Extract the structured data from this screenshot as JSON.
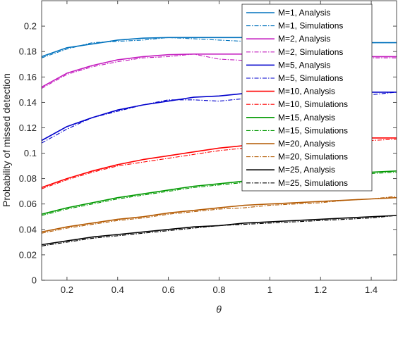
{
  "chart_data": {
    "type": "line",
    "xlabel": "θ",
    "ylabel": "Probability of missed detection",
    "xlim": [
      0.1,
      1.5
    ],
    "ylim": [
      0,
      0.22
    ],
    "xticks": [
      "0.2",
      "0.4",
      "0.6",
      "0.8",
      "1",
      "1.2",
      "1.4"
    ],
    "yticks": [
      "0",
      "0.02",
      "0.04",
      "0.06",
      "0.08",
      "0.1",
      "0.12",
      "0.14",
      "0.16",
      "0.18",
      "0.2"
    ],
    "grid": false,
    "legend_position": "top-right",
    "x": [
      0.1,
      0.2,
      0.3,
      0.4,
      0.5,
      0.6,
      0.7,
      0.8,
      0.9,
      1.0,
      1.1,
      1.2,
      1.3,
      1.4,
      1.5
    ],
    "series": [
      {
        "name": "M=1, Analysis",
        "color": "#0072BD",
        "dash": "solid",
        "values": [
          0.176,
          0.183,
          0.186,
          0.189,
          0.1905,
          0.191,
          0.191,
          0.191,
          0.191,
          0.1905,
          0.19,
          0.189,
          0.188,
          0.187,
          0.187
        ]
      },
      {
        "name": "M=1, Simulations",
        "color": "#0072BD",
        "dash": "dashdot",
        "values": [
          0.175,
          0.182,
          0.187,
          0.188,
          0.189,
          0.191,
          0.19,
          0.189,
          0.188,
          0.187,
          0.186,
          0.187,
          0.186,
          0.187,
          0.187
        ]
      },
      {
        "name": "M=2, Analysis",
        "color": "#C41DBF",
        "dash": "solid",
        "values": [
          0.152,
          0.163,
          0.169,
          0.1735,
          0.176,
          0.1775,
          0.178,
          0.178,
          0.178,
          0.178,
          0.178,
          0.177,
          0.177,
          0.176,
          0.176
        ]
      },
      {
        "name": "M=2, Simulations",
        "color": "#C41DBF",
        "dash": "dashdot",
        "values": [
          0.151,
          0.162,
          0.168,
          0.172,
          0.175,
          0.176,
          0.178,
          0.174,
          0.173,
          0.175,
          0.172,
          0.174,
          0.176,
          0.175,
          0.175
        ]
      },
      {
        "name": "M=5, Analysis",
        "color": "#0000CC",
        "dash": "solid",
        "values": [
          0.11,
          0.121,
          0.128,
          0.134,
          0.138,
          0.141,
          0.144,
          0.145,
          0.147,
          0.147,
          0.148,
          0.148,
          0.148,
          0.148,
          0.148
        ]
      },
      {
        "name": "M=5, Simulations",
        "color": "#0000CC",
        "dash": "dashdot",
        "values": [
          0.108,
          0.119,
          0.128,
          0.133,
          0.138,
          0.142,
          0.142,
          0.141,
          0.143,
          0.141,
          0.14,
          0.142,
          0.145,
          0.146,
          0.148
        ]
      },
      {
        "name": "M=10, Analysis",
        "color": "#FF0000",
        "dash": "solid",
        "values": [
          0.073,
          0.08,
          0.086,
          0.091,
          0.095,
          0.098,
          0.101,
          0.104,
          0.106,
          0.108,
          0.109,
          0.11,
          0.111,
          0.112,
          0.112
        ]
      },
      {
        "name": "M=10, Simulations",
        "color": "#FF0000",
        "dash": "dashdot",
        "values": [
          0.072,
          0.079,
          0.085,
          0.09,
          0.093,
          0.096,
          0.099,
          0.102,
          0.104,
          0.106,
          0.107,
          0.108,
          0.109,
          0.11,
          0.111
        ]
      },
      {
        "name": "M=15, Analysis",
        "color": "#009900",
        "dash": "solid",
        "values": [
          0.052,
          0.057,
          0.061,
          0.065,
          0.068,
          0.071,
          0.074,
          0.076,
          0.078,
          0.08,
          0.081,
          0.083,
          0.084,
          0.085,
          0.086
        ]
      },
      {
        "name": "M=15, Simulations",
        "color": "#009900",
        "dash": "dashdot",
        "values": [
          0.051,
          0.056,
          0.06,
          0.064,
          0.067,
          0.07,
          0.073,
          0.075,
          0.077,
          0.078,
          0.079,
          0.081,
          0.083,
          0.084,
          0.085
        ]
      },
      {
        "name": "M=20, Analysis",
        "color": "#B35900",
        "dash": "solid",
        "values": [
          0.038,
          0.042,
          0.045,
          0.048,
          0.05,
          0.053,
          0.055,
          0.057,
          0.059,
          0.06,
          0.061,
          0.062,
          0.063,
          0.064,
          0.065
        ]
      },
      {
        "name": "M=20, Simulations",
        "color": "#B35900",
        "dash": "dashdot",
        "values": [
          0.037,
          0.041,
          0.044,
          0.047,
          0.049,
          0.052,
          0.054,
          0.056,
          0.057,
          0.059,
          0.06,
          0.061,
          0.063,
          0.064,
          0.066
        ]
      },
      {
        "name": "M=25, Analysis",
        "color": "#000000",
        "dash": "solid",
        "values": [
          0.028,
          0.031,
          0.034,
          0.036,
          0.038,
          0.04,
          0.042,
          0.043,
          0.045,
          0.046,
          0.047,
          0.048,
          0.049,
          0.05,
          0.051
        ]
      },
      {
        "name": "M=25, Simulations",
        "color": "#000000",
        "dash": "dashdot",
        "values": [
          0.027,
          0.03,
          0.033,
          0.035,
          0.037,
          0.039,
          0.041,
          0.043,
          0.044,
          0.045,
          0.046,
          0.047,
          0.048,
          0.049,
          0.051
        ]
      }
    ]
  }
}
